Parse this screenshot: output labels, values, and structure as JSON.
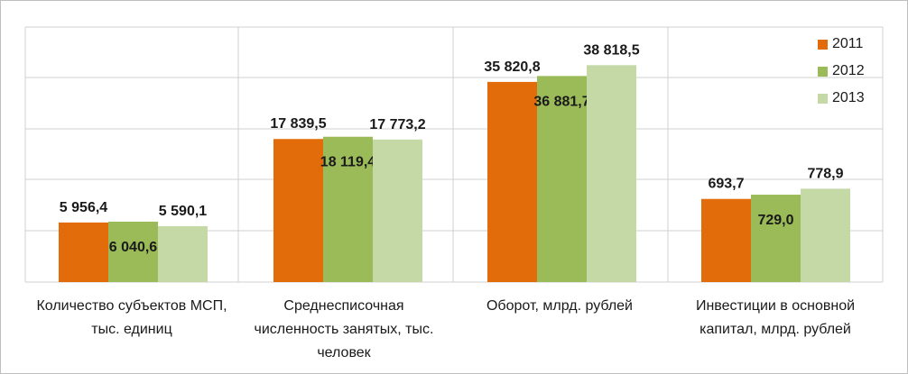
{
  "chart_data": {
    "type": "bar",
    "categories": [
      "Количество субъектов МСП, тыс. единиц",
      "Среднесписочная численность занятых, тыс. человек",
      "Оборот, млрд. рублей",
      "Инвестиции в основной капитал, млрд. рублей"
    ],
    "series": [
      {
        "name": "2011",
        "color": "#e36c0a",
        "values": [
          5956.4,
          17839.5,
          35820.8,
          693.7
        ],
        "labels": [
          "5 956,4",
          "17 839,5",
          "35 820,8",
          "693,7"
        ]
      },
      {
        "name": "2012",
        "color": "#9bbb59",
        "values": [
          6040.6,
          18119.4,
          36881.7,
          729.0
        ],
        "labels": [
          "6 040,6",
          "18 119,4",
          "36 881,7",
          "729,0"
        ]
      },
      {
        "name": "2013",
        "color": "#c4d9a5",
        "values": [
          5590.1,
          17773.2,
          38818.5,
          778.9
        ],
        "labels": [
          "5 590,1",
          "17 773,2",
          "38 818,5",
          "778,9"
        ]
      }
    ],
    "grid": true,
    "legend_position": "top-right"
  }
}
